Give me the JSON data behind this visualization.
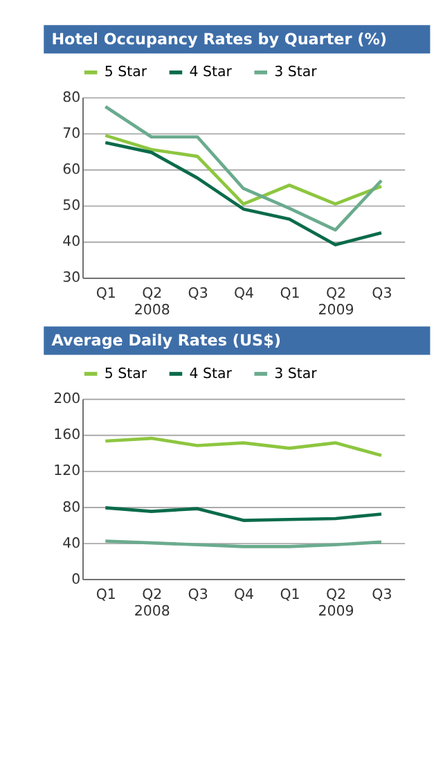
{
  "chart_data": [
    {
      "type": "line",
      "title": "Hotel Occupancy Rates by Quarter (%)",
      "categories": [
        "Q1",
        "Q2\n2008",
        "Q3",
        "Q4",
        "Q1",
        "Q2\n2009",
        "Q3"
      ],
      "ylim": [
        30,
        80
      ],
      "yticks": [
        30,
        40,
        50,
        60,
        70,
        80
      ],
      "grid": "y",
      "legend": "top",
      "marker": "none",
      "series": [
        {
          "name": "5 Star",
          "color": "#8dc63f",
          "values": [
            69.4,
            65.5,
            63.6,
            50.4,
            55.6,
            50.4,
            55.3
          ]
        },
        {
          "name": "4 Star",
          "color": "#0a6b4b",
          "values": [
            67.4,
            64.7,
            57.6,
            49.0,
            46.2,
            39.1,
            42.4
          ]
        },
        {
          "name": "3 Star",
          "color": "#6aab8e",
          "values": [
            77.4,
            69.0,
            69.0,
            54.7,
            49.2,
            43.2,
            56.9
          ]
        }
      ]
    },
    {
      "type": "line",
      "title": "Average Daily Rates (US$)",
      "categories": [
        "Q1",
        "Q2\n2008",
        "Q3",
        "Q4",
        "Q1",
        "Q2\n2009",
        "Q3"
      ],
      "ylim": [
        0,
        200
      ],
      "yticks": [
        0,
        40,
        80,
        120,
        160,
        200
      ],
      "grid": "y",
      "legend": "top",
      "marker": "none",
      "series": [
        {
          "name": "5 Star",
          "color": "#8dc63f",
          "values": [
            153,
            156,
            148,
            151,
            145,
            151,
            137
          ]
        },
        {
          "name": "4 Star",
          "color": "#0a6b4b",
          "values": [
            79,
            75,
            78,
            65,
            66,
            67,
            72
          ]
        },
        {
          "name": "3 Star",
          "color": "#6aab8e",
          "values": [
            42,
            40,
            38,
            36,
            36,
            38,
            41
          ]
        }
      ]
    }
  ]
}
